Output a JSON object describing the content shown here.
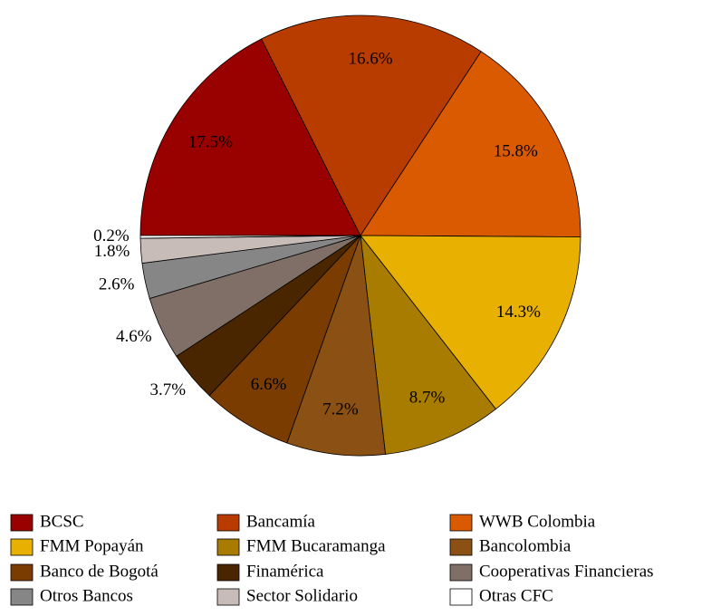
{
  "chart_data": {
    "type": "pie",
    "categories": [
      "BCSC",
      "Bancamía",
      "WWB Colombia",
      "FMM Popayán",
      "FMM Bucaramanga",
      "Bancolombia",
      "Banco de Bogotá",
      "Finamérica",
      "Cooperativas Financieras",
      "Otros Bancos",
      "Sector Solidario",
      "Otras CFC"
    ],
    "values": [
      17.5,
      16.6,
      15.8,
      14.3,
      8.7,
      7.2,
      6.6,
      3.7,
      4.6,
      2.6,
      1.8,
      0.2
    ],
    "value_labels": [
      "17.5%",
      "16.6%",
      "15.8%",
      "14.3%",
      "8.7%",
      "7.2%",
      "6.6%",
      "3.7%",
      "4.6%",
      "2.6%",
      "1.8%",
      "0.2%"
    ],
    "colors": [
      "#990000",
      "#b83c00",
      "#d95a00",
      "#e8b000",
      "#a87c00",
      "#8a5014",
      "#7a3c00",
      "#4a2600",
      "#7f6f66",
      "#868686",
      "#c8bcb8",
      "#ffffff"
    ],
    "legend": "bottom"
  }
}
